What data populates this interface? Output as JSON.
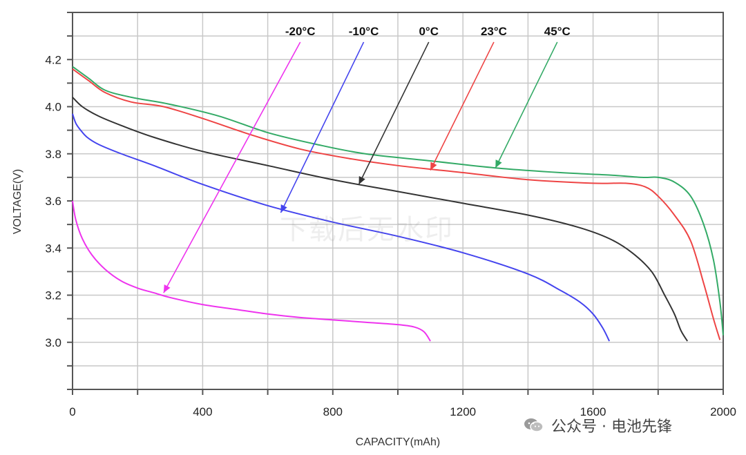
{
  "chart_data": {
    "type": "line",
    "title": "",
    "xlabel": "CAPACITY(mAh)",
    "ylabel": "VOLTAGE(V)",
    "xlim": [
      0,
      2000
    ],
    "ylim": [
      2.8,
      4.4
    ],
    "x_ticks": [
      "0",
      "400",
      "800",
      "1200",
      "1600",
      "2000"
    ],
    "y_ticks": [
      "3.0",
      "3.2",
      "3.4",
      "3.6",
      "3.8",
      "4.0",
      "4.2"
    ],
    "grid": true,
    "series": [
      {
        "name": "-20°C",
        "color": "#ee33ee",
        "x": [
          0,
          10,
          30,
          60,
          100,
          150,
          200,
          250,
          300,
          400,
          500,
          600,
          700,
          800,
          900,
          1000,
          1050,
          1080,
          1100
        ],
        "y": [
          3.6,
          3.52,
          3.44,
          3.37,
          3.31,
          3.26,
          3.23,
          3.21,
          3.19,
          3.16,
          3.14,
          3.12,
          3.105,
          3.095,
          3.085,
          3.075,
          3.065,
          3.045,
          3.005
        ],
        "label_x": 700,
        "label_y": 4.28,
        "arrow_x": 280,
        "arrow_y": 3.21
      },
      {
        "name": "-10°C",
        "color": "#4444ee",
        "x": [
          0,
          10,
          25,
          45,
          80,
          150,
          250,
          400,
          600,
          800,
          1000,
          1200,
          1400,
          1500,
          1560,
          1600,
          1630,
          1650
        ],
        "y": [
          3.97,
          3.93,
          3.9,
          3.87,
          3.84,
          3.8,
          3.75,
          3.67,
          3.58,
          3.51,
          3.45,
          3.38,
          3.29,
          3.22,
          3.17,
          3.12,
          3.06,
          3.005
        ],
        "label_x": 895,
        "label_y": 4.28,
        "arrow_x": 640,
        "arrow_y": 3.55
      },
      {
        "name": "0°C",
        "color": "#333333",
        "x": [
          0,
          30,
          80,
          150,
          250,
          400,
          600,
          800,
          1000,
          1200,
          1400,
          1550,
          1650,
          1720,
          1780,
          1820,
          1850,
          1870,
          1890
        ],
        "y": [
          4.04,
          4.0,
          3.96,
          3.92,
          3.87,
          3.81,
          3.75,
          3.69,
          3.64,
          3.59,
          3.54,
          3.49,
          3.44,
          3.38,
          3.3,
          3.2,
          3.12,
          3.05,
          3.005
        ],
        "label_x": 1095,
        "label_y": 4.28,
        "arrow_x": 880,
        "arrow_y": 3.67
      },
      {
        "name": "23°C",
        "color": "#ee4444",
        "x": [
          0,
          50,
          100,
          180,
          280,
          400,
          550,
          700,
          850,
          1000,
          1200,
          1400,
          1600,
          1700,
          1760,
          1800,
          1850,
          1900,
          1940,
          1970,
          1990
        ],
        "y": [
          4.16,
          4.11,
          4.06,
          4.02,
          4.0,
          3.95,
          3.88,
          3.82,
          3.78,
          3.75,
          3.72,
          3.69,
          3.675,
          3.675,
          3.66,
          3.62,
          3.54,
          3.43,
          3.25,
          3.1,
          3.01
        ],
        "label_x": 1295,
        "label_y": 4.28,
        "arrow_x": 1100,
        "arrow_y": 3.73
      },
      {
        "name": "45°C",
        "color": "#33aa66",
        "x": [
          0,
          50,
          100,
          180,
          300,
          450,
          600,
          750,
          900,
          1100,
          1300,
          1500,
          1650,
          1750,
          1800,
          1850,
          1900,
          1940,
          1970,
          1990,
          2000
        ],
        "y": [
          4.17,
          4.12,
          4.07,
          4.04,
          4.01,
          3.96,
          3.89,
          3.84,
          3.8,
          3.77,
          3.74,
          3.72,
          3.71,
          3.7,
          3.7,
          3.68,
          3.62,
          3.5,
          3.35,
          3.17,
          3.03
        ],
        "label_x": 1490,
        "label_y": 4.28,
        "arrow_x": 1300,
        "arrow_y": 3.74
      }
    ]
  },
  "watermark": "下载后无水印",
  "brand": {
    "icon": "wechat-icon",
    "text": "公众号 · 电池先锋"
  }
}
